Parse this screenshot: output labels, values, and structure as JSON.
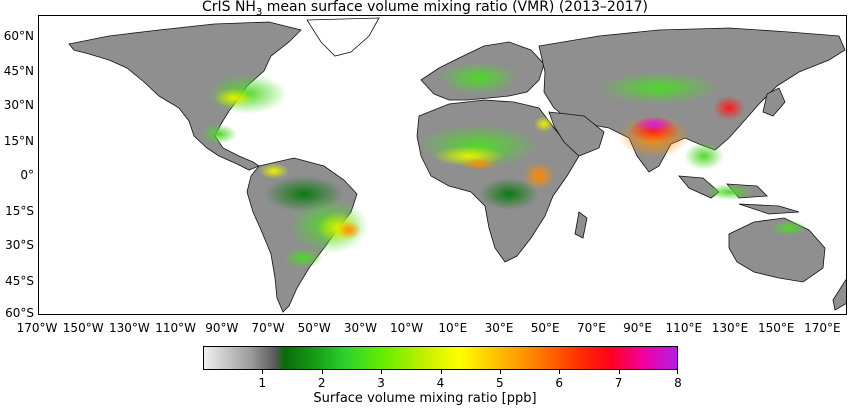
{
  "title": {
    "prefix": "CrIS NH",
    "subscript": "3",
    "suffix": " mean surface volume mixing ratio (VMR) (2013–2017)"
  },
  "map": {
    "latitude_labels": [
      "60°N",
      "45°N",
      "30°N",
      "15°N",
      "0°",
      "15°S",
      "30°S",
      "45°S",
      "60°S"
    ],
    "longitude_labels": [
      "170°W",
      "150°W",
      "130°W",
      "110°W",
      "90°W",
      "70°W",
      "50°W",
      "30°W",
      "10°W",
      "10°E",
      "30°E",
      "50°E",
      "70°E",
      "90°E",
      "110°E",
      "130°E",
      "150°E",
      "170°E"
    ],
    "lat_range": [
      -62,
      68
    ],
    "lon_range": [
      -175,
      175
    ]
  },
  "colorbar": {
    "ticks": [
      "1",
      "2",
      "3",
      "4",
      "5",
      "6",
      "7",
      "8"
    ],
    "range": [
      0,
      8
    ],
    "label": "Surface volume mixing ratio [ppb]",
    "colors": {
      "low": "#f0f0f0",
      "grey": "#7a7a7a",
      "green": "#1aa01a",
      "yellow": "#ffff00",
      "orange": "#ff8000",
      "red": "#ff0020",
      "magenta": "#b41ee6"
    }
  }
}
